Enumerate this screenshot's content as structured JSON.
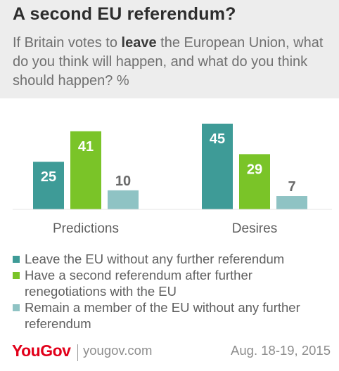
{
  "header": {
    "title": "A second EU referendum?",
    "subtitle_pre": "If Britain votes to ",
    "subtitle_bold": "leave",
    "subtitle_post": " the European Union, what do you think will happen, and what do you think should happen? %"
  },
  "colors": {
    "header_bg": "#ededed",
    "series1": "#3e9b97",
    "series2": "#7ac428",
    "series3": "#8fc3c4"
  },
  "chart_data": {
    "type": "bar",
    "title": "A second EU referendum?",
    "categories": [
      "Predictions",
      "Desires"
    ],
    "ylim": [
      0,
      45
    ],
    "series": [
      {
        "name": "Leave the EU without any further referendum",
        "values": [
          25,
          45
        ]
      },
      {
        "name": "Have a second referendum after further renegotiations with the EU",
        "values": [
          41,
          29
        ]
      },
      {
        "name": "Remain a member of the EU without any further referendum",
        "values": [
          10,
          7
        ]
      }
    ]
  },
  "footer": {
    "logo": "YouGov",
    "site": "yougov.com",
    "date": "Aug. 18-19, 2015"
  }
}
